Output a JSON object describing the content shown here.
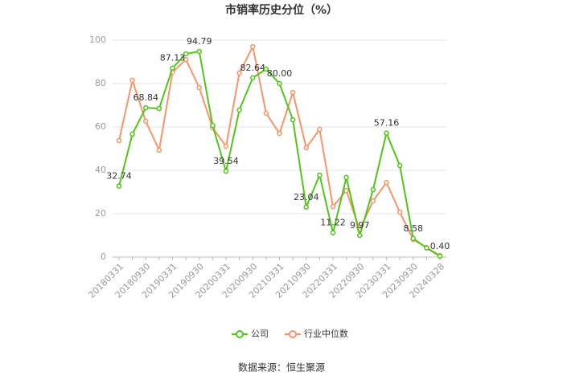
{
  "chart_data": {
    "type": "line",
    "title": "市销率历史分位（%）",
    "categories": [
      "20180331",
      null,
      "20180930",
      null,
      "20190331",
      null,
      "20190930",
      null,
      "20200331",
      null,
      "20200930",
      null,
      "20210331",
      null,
      "20210930",
      null,
      "20220331",
      null,
      "20220930",
      null,
      "20230331",
      null,
      "20230930",
      null,
      "20240328"
    ],
    "series": [
      {
        "name": "公司",
        "color": "#52c41a",
        "values": [
          32.74,
          56.7,
          68.84,
          68.5,
          87.13,
          93.7,
          94.79,
          60.7,
          39.54,
          67.8,
          82.64,
          86.7,
          80.0,
          63.3,
          23.04,
          37.8,
          11.22,
          36.7,
          9.97,
          31.1,
          57.16,
          42.2,
          8.58,
          4.2,
          0.4
        ],
        "value_labels": [
          "32.74",
          null,
          "68.84",
          null,
          "87.13",
          null,
          "94.79",
          null,
          "39.54",
          null,
          "82.64",
          null,
          "80.00",
          null,
          "23.04",
          null,
          "11.22",
          null,
          "9.97",
          null,
          "57.16",
          null,
          "8.58",
          null,
          "0.40"
        ]
      },
      {
        "name": "行业中位数",
        "color": "#f4956a",
        "values": [
          53.7,
          81.5,
          62.6,
          49.3,
          85.2,
          91.1,
          78.1,
          59.6,
          51.1,
          84.8,
          97.0,
          66.3,
          57.0,
          75.9,
          50.4,
          58.9,
          23.3,
          30.7,
          12.6,
          25.9,
          34.4,
          20.7,
          8.1,
          4.4,
          0.7
        ]
      }
    ],
    "ylim": [
      0,
      100
    ],
    "yticks": [
      0,
      20,
      40,
      60,
      80,
      100
    ],
    "grid": true,
    "source": "数据来源：恒生聚源"
  }
}
